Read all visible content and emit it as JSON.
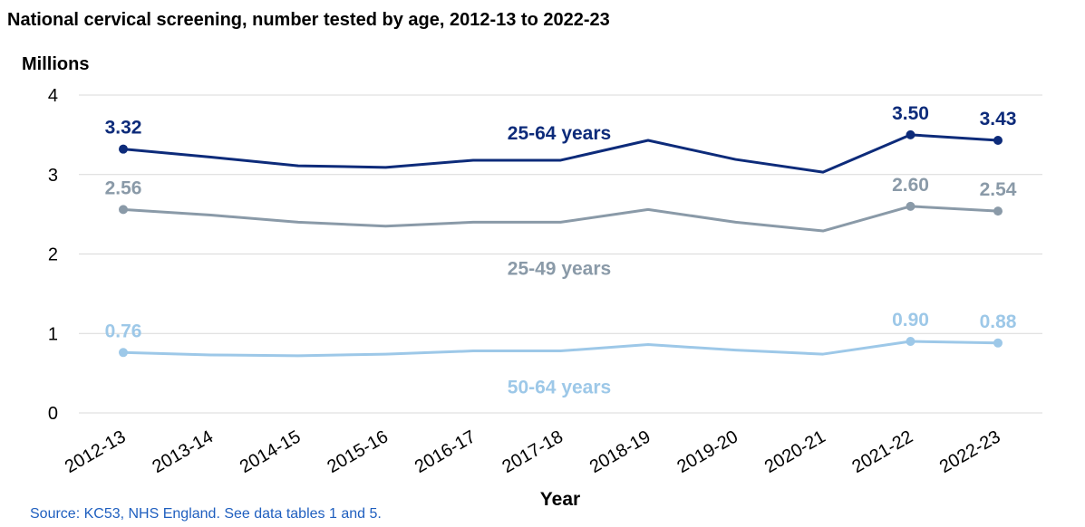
{
  "source_text": "Source: KC53, NHS England. See data tables 1 and 5.",
  "colors": {
    "series_25_64": "#0d2b7a",
    "series_25_49": "#8a9aa8",
    "series_50_64": "#9dc8e8",
    "gridline": "#d9d9d9",
    "source_text": "#1f5fbf"
  },
  "chart_data": {
    "type": "line",
    "title": "National cervical screening, number tested by age, 2012-13 to 2022-23",
    "ylabel": "Millions",
    "xlabel": "Year",
    "ylim": [
      0,
      4
    ],
    "yticks": [
      "0",
      "1",
      "2",
      "3",
      "4"
    ],
    "grid": true,
    "legend": "inline labels",
    "categories": [
      "2012-13",
      "2013-14",
      "2014-15",
      "2015-16",
      "2016-17",
      "2017-18",
      "2018-19",
      "2019-20",
      "2020-21",
      "2021-22",
      "2022-23"
    ],
    "series": [
      {
        "name": "25-64 years",
        "values": [
          3.32,
          3.22,
          3.11,
          3.09,
          3.18,
          3.18,
          3.43,
          3.19,
          3.03,
          3.5,
          3.43
        ],
        "labels": [
          "3.32",
          "",
          "",
          "",
          "",
          "",
          "",
          "",
          "",
          "3.50",
          "3.43"
        ]
      },
      {
        "name": "25-49 years",
        "values": [
          2.56,
          2.49,
          2.4,
          2.35,
          2.4,
          2.4,
          2.56,
          2.4,
          2.29,
          2.6,
          2.54
        ],
        "labels": [
          "2.56",
          "",
          "",
          "",
          "",
          "",
          "",
          "",
          "",
          "2.60",
          "2.54"
        ]
      },
      {
        "name": "50-64 years",
        "values": [
          0.76,
          0.73,
          0.72,
          0.74,
          0.78,
          0.78,
          0.86,
          0.79,
          0.74,
          0.9,
          0.88
        ],
        "labels": [
          "0.76",
          "",
          "",
          "",
          "",
          "",
          "",
          "",
          "",
          "0.90",
          "0.88"
        ]
      }
    ]
  }
}
